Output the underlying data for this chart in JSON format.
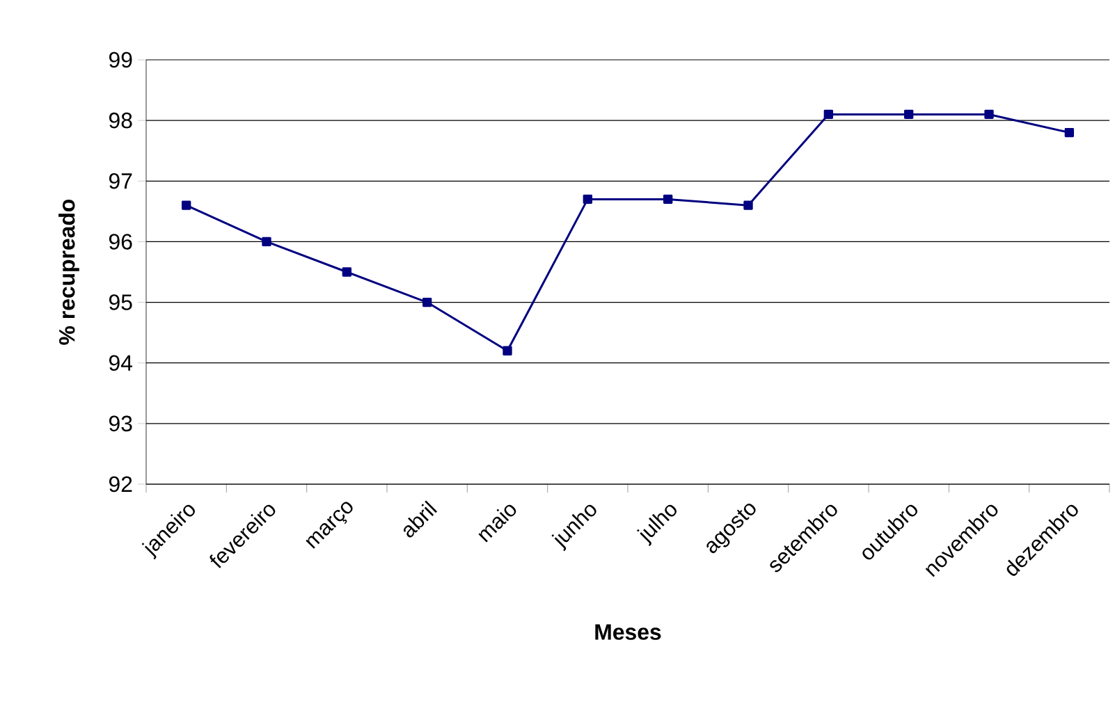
{
  "chart_data": {
    "type": "line",
    "xlabel": "Meses",
    "ylabel": "% recupreado",
    "categories": [
      "janeiro",
      "fevereiro",
      "março",
      "abril",
      "maio",
      "junho",
      "julho",
      "agosto",
      "setembro",
      "outubro",
      "novembro",
      "dezembro"
    ],
    "series": [
      {
        "color": "#000080",
        "values": [
          96.6,
          96.0,
          95.5,
          95.0,
          94.2,
          96.7,
          96.7,
          96.6,
          98.1,
          98.1,
          98.1,
          97.8
        ]
      }
    ],
    "ylim": [
      92,
      99
    ],
    "yticks": [
      92,
      93,
      94,
      95,
      96,
      97,
      98,
      99
    ],
    "grid": "y",
    "marker": "square",
    "line_style": "solid"
  }
}
